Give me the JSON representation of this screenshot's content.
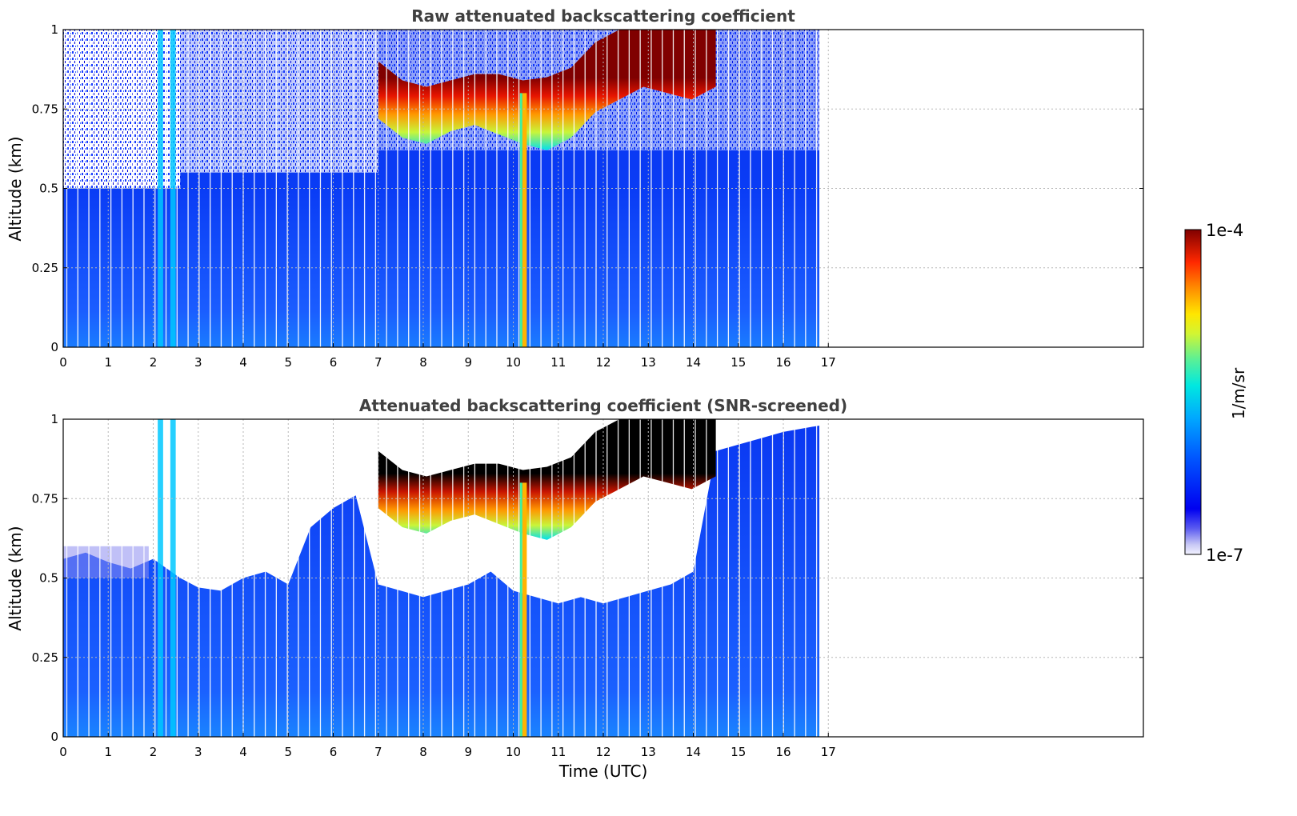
{
  "chart_data": [
    {
      "type": "heatmap",
      "title": "Raw attenuated backscattering coefficient",
      "xlabel": "",
      "ylabel": "Altitude (km)",
      "xlim": [
        0,
        24
      ],
      "ylim": [
        0,
        1
      ],
      "xticks": [
        0,
        1,
        2,
        3,
        4,
        5,
        6,
        7,
        8,
        9,
        10,
        11,
        12,
        13,
        14,
        15,
        16,
        17
      ],
      "yticks": [
        0,
        0.25,
        0.5,
        0.75,
        1
      ],
      "ytick_labels": [
        "0",
        "0.25",
        "0.5",
        "0.75",
        "1"
      ],
      "grid": true,
      "data_extent_x": [
        0,
        16.8
      ],
      "features": [
        {
          "name": "noise_top",
          "x": [
            0,
            2.6
          ],
          "y": [
            0.5,
            1
          ]
        },
        {
          "name": "precip_columns",
          "x": [
            2.1,
            2.5
          ],
          "y": [
            0,
            1
          ]
        },
        {
          "name": "cloud_layer",
          "x": [
            7.0,
            14.5
          ],
          "base_y": [
            0.8,
            0.74,
            0.72,
            0.76,
            0.78,
            0.75,
            0.72,
            0.7,
            0.74,
            0.82,
            0.86,
            0.9,
            0.88,
            0.86,
            0.9
          ],
          "top_y": [
            0.9,
            0.84,
            0.82,
            0.84,
            0.86,
            0.86,
            0.84,
            0.85,
            0.88,
            0.96,
            1.0,
            1.0,
            1.0,
            1.0,
            1.0
          ]
        },
        {
          "name": "fog_column",
          "x": [
            10.2,
            10.3
          ],
          "y": [
            0,
            0.8
          ]
        }
      ]
    },
    {
      "type": "heatmap",
      "title": "Attenuated backscattering coefficient (SNR-screened)",
      "xlabel": "Time (UTC)",
      "ylabel": "Altitude (km)",
      "xlim": [
        0,
        24
      ],
      "ylim": [
        0,
        1
      ],
      "xticks": [
        0,
        1,
        2,
        3,
        4,
        5,
        6,
        7,
        8,
        9,
        10,
        11,
        12,
        13,
        14,
        15,
        16,
        17
      ],
      "yticks": [
        0,
        0.25,
        0.5,
        0.75,
        1
      ],
      "ytick_labels": [
        "0",
        "0.25",
        "0.5",
        "0.75",
        "1"
      ],
      "grid": true,
      "data_extent_x": [
        0,
        16.8
      ],
      "screened_top": {
        "x": [
          0,
          0.5,
          1,
          1.5,
          2,
          2.6,
          3,
          3.5,
          4,
          4.5,
          5,
          5.5,
          6,
          6.5,
          7,
          7.5,
          8,
          8.5,
          9,
          9.5,
          10,
          10.5,
          11,
          11.5,
          12,
          12.5,
          13,
          13.5,
          14,
          14.5,
          15,
          15.5,
          16,
          16.8
        ],
        "y": [
          0.56,
          0.58,
          0.55,
          0.53,
          0.56,
          0.5,
          0.47,
          0.46,
          0.5,
          0.52,
          0.48,
          0.66,
          0.72,
          0.76,
          0.48,
          0.46,
          0.44,
          0.46,
          0.48,
          0.52,
          0.46,
          0.44,
          0.42,
          0.44,
          0.42,
          0.44,
          0.46,
          0.48,
          0.52,
          0.9,
          0.92,
          0.94,
          0.96,
          0.98
        ]
      }
    }
  ],
  "colorbar": {
    "label": "1/m/sr",
    "min_label": "1e-7",
    "max_label": "1e-4",
    "scale": "log",
    "colormap": "jet"
  }
}
